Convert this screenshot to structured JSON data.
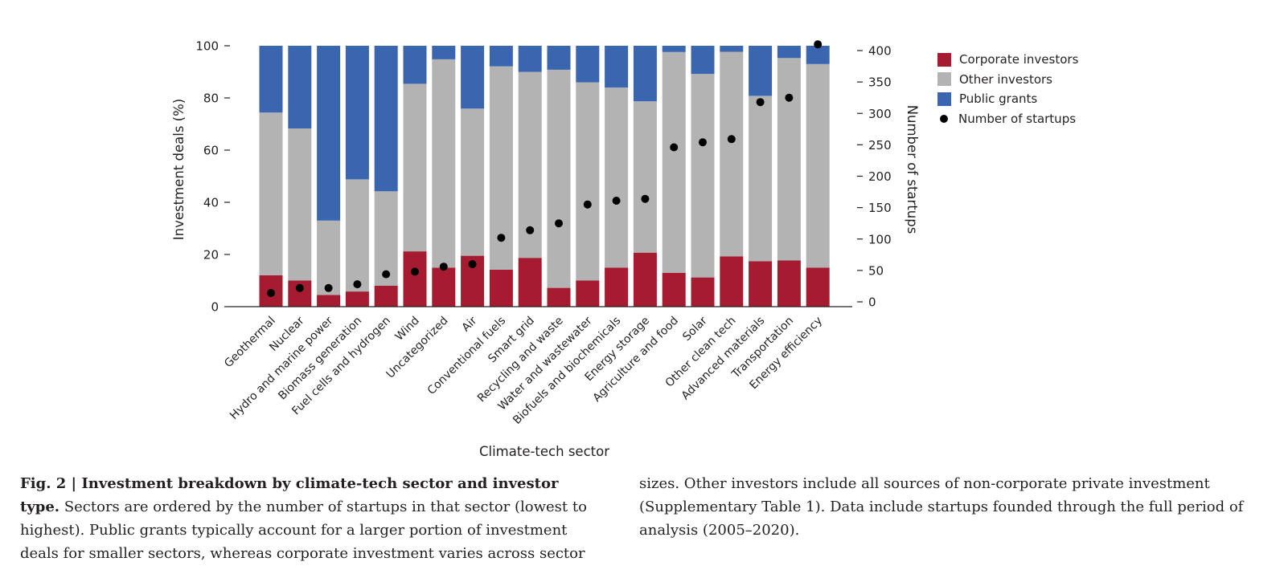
{
  "chart_data": {
    "type": "bar",
    "stacked": true,
    "xlabel": "Climate-tech sector",
    "ylabel": "Investment deals (%)",
    "y2label": "Number of startups",
    "ylim": [
      0,
      100
    ],
    "y2lim": [
      0,
      400
    ],
    "yticks": [
      0,
      20,
      40,
      60,
      80,
      100
    ],
    "y2ticks": [
      0,
      50,
      100,
      150,
      200,
      250,
      300,
      350,
      400
    ],
    "legend_position": "top-right",
    "categories": [
      "Geothermal",
      "Nuclear",
      "Hydro and marine power",
      "Biomass generation",
      "Fuel cells and hydrogen",
      "Wind",
      "Uncategorized",
      "Air",
      "Conventional fuels",
      "Smart grid",
      "Recycling and waste",
      "Water and wastewater",
      "Biofuels and biochemicals",
      "Energy storage",
      "Agriculture and food",
      "Solar",
      "Other clean tech",
      "Advanced materials",
      "Transportation",
      "Energy efficiency"
    ],
    "series": [
      {
        "name": "Corporate investors",
        "color": "#a51c30",
        "values": [
          12,
          10,
          4.5,
          5.8,
          8,
          21.2,
          15,
          19.5,
          14.2,
          18.7,
          7.2,
          10,
          15,
          20.7,
          13,
          11.2,
          19.3,
          17.4,
          17.7,
          15
        ]
      },
      {
        "name": "Other investors",
        "color": "#b3b3b3",
        "values": [
          62.4,
          58.3,
          28.5,
          43,
          36.2,
          64.2,
          79.8,
          56.4,
          77.9,
          71.3,
          83.6,
          76,
          69,
          58,
          84.6,
          78,
          78.4,
          63.4,
          77.6,
          78
        ]
      },
      {
        "name": "Public grants",
        "color": "#3a66b0",
        "values": [
          25.6,
          31.7,
          67,
          51.2,
          55.8,
          14.6,
          5.2,
          24.1,
          7.9,
          10,
          9.2,
          14,
          16,
          21.3,
          2.4,
          10.8,
          2.3,
          19.2,
          4.7,
          7
        ]
      }
    ],
    "points": {
      "name": "Number of startups",
      "axis": "right",
      "color": "#000000",
      "values": [
        14,
        22,
        22,
        28,
        44,
        48,
        56,
        60,
        102,
        114,
        125,
        155,
        161,
        164,
        246,
        254,
        259,
        318,
        325,
        410
      ]
    }
  },
  "caption": {
    "title": "Fig. 2 | Investment breakdown by climate-tech sector and investor type.",
    "left_text": "Sectors are ordered by the number of startups in that sector (lowest to highest). Public grants typically account for a larger portion of investment deals for smaller sectors, whereas corporate investment varies across sector",
    "right_text": "sizes. Other investors include all sources of non-corporate private investment (Supplementary Table 1). Data include startups founded through the full period of analysis (2005–2020)."
  }
}
